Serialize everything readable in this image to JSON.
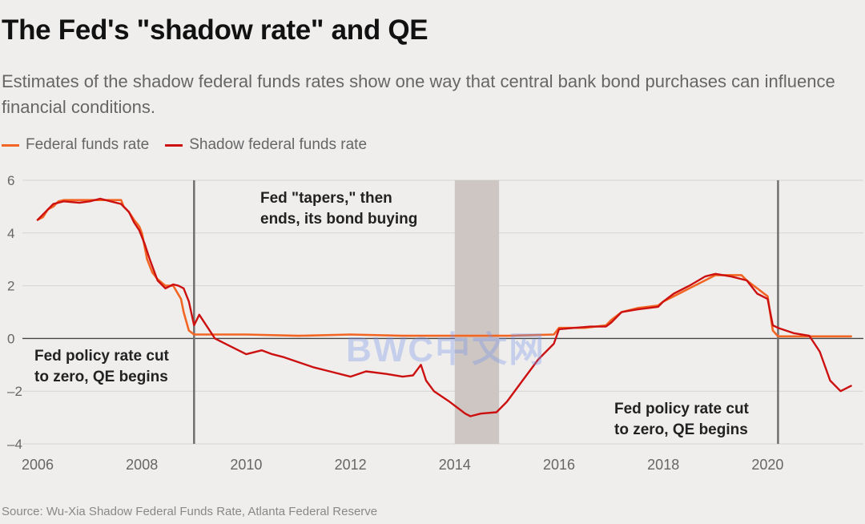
{
  "title": "The Fed's \"shadow rate\" and QE",
  "subtitle": "Estimates of the shadow federal funds rates show one way that central bank bond purchases can influence financial conditions.",
  "source": "Source: Wu-Xia Shadow Federal Funds Rate, Atlanta Federal Reserve",
  "watermark": "BWC中文网",
  "colors": {
    "federal_funds_rate": "#f26522",
    "shadow_rate": "#cc1010",
    "shaded_band": "#cdc6c2",
    "event_line": "#707070",
    "grid": "#d4d4d4",
    "background": "#efeeed"
  },
  "chart_data": {
    "type": "line",
    "title": "The Fed's \"shadow rate\" and QE",
    "xlabel": "",
    "ylabel": "",
    "xlim": [
      2006,
      2021.7
    ],
    "ylim": [
      -4,
      6
    ],
    "x_ticks": [
      "2006",
      "2008",
      "2010",
      "2012",
      "2014",
      "2016",
      "2018",
      "2020"
    ],
    "y_ticks": [
      "6",
      "4",
      "2",
      "0",
      "-2",
      "-4"
    ],
    "grid": true,
    "legend_position": "top-left",
    "series": [
      {
        "name": "Federal funds rate",
        "color": "#f26522",
        "x": [
          2006.0,
          2006.1,
          2006.2,
          2006.3,
          2006.4,
          2006.5,
          2006.6,
          2006.8,
          2007.0,
          2007.2,
          2007.4,
          2007.6,
          2007.65,
          2007.75,
          2007.85,
          2007.95,
          2008.0,
          2008.1,
          2008.2,
          2008.3,
          2008.45,
          2008.6,
          2008.75,
          2008.8,
          2008.9,
          2009.0,
          2009.5,
          2010.0,
          2011.0,
          2012.0,
          2013.0,
          2014.0,
          2015.0,
          2015.9,
          2016.0,
          2016.5,
          2016.9,
          2017.0,
          2017.2,
          2017.5,
          2017.9,
          2018.0,
          2018.2,
          2018.5,
          2018.8,
          2019.0,
          2019.5,
          2019.6,
          2019.8,
          2020.0,
          2020.1,
          2020.2,
          2021.0,
          2021.6
        ],
        "y": [
          4.5,
          4.6,
          4.9,
          5.0,
          5.2,
          5.25,
          5.25,
          5.25,
          5.25,
          5.25,
          5.25,
          5.25,
          5.0,
          4.8,
          4.5,
          4.25,
          4.0,
          3.0,
          2.5,
          2.25,
          2.0,
          2.0,
          1.5,
          1.0,
          0.3,
          0.15,
          0.15,
          0.15,
          0.1,
          0.15,
          0.1,
          0.1,
          0.1,
          0.15,
          0.4,
          0.4,
          0.5,
          0.7,
          1.0,
          1.15,
          1.25,
          1.4,
          1.6,
          1.9,
          2.2,
          2.4,
          2.4,
          2.2,
          1.9,
          1.6,
          0.3,
          0.08,
          0.08,
          0.08
        ]
      },
      {
        "name": "Shadow federal funds rate",
        "color": "#cc1010",
        "x": [
          2006.0,
          2006.1,
          2006.2,
          2006.3,
          2006.4,
          2006.5,
          2006.8,
          2007.0,
          2007.2,
          2007.4,
          2007.6,
          2007.75,
          2007.85,
          2007.95,
          2008.05,
          2008.15,
          2008.3,
          2008.45,
          2008.6,
          2008.7,
          2008.8,
          2008.9,
          2009.0,
          2009.1,
          2009.2,
          2009.4,
          2009.7,
          2010.0,
          2010.3,
          2010.5,
          2010.7,
          2011.0,
          2011.3,
          2011.6,
          2012.0,
          2012.3,
          2012.7,
          2013.0,
          2013.2,
          2013.35,
          2013.45,
          2013.6,
          2013.9,
          2014.2,
          2014.3,
          2014.5,
          2014.8,
          2015.0,
          2015.3,
          2015.6,
          2015.9,
          2016.0,
          2016.3,
          2016.6,
          2016.9,
          2017.0,
          2017.2,
          2017.5,
          2017.9,
          2018.0,
          2018.2,
          2018.5,
          2018.8,
          2019.0,
          2019.3,
          2019.6,
          2019.8,
          2020.0,
          2020.1,
          2020.2,
          2020.5,
          2020.8,
          2021.0,
          2021.2,
          2021.4,
          2021.6
        ],
        "y": [
          4.5,
          4.7,
          4.9,
          5.1,
          5.15,
          5.2,
          5.15,
          5.2,
          5.3,
          5.2,
          5.1,
          4.8,
          4.4,
          4.1,
          3.6,
          3.0,
          2.2,
          1.9,
          2.05,
          2.0,
          1.9,
          1.4,
          0.5,
          0.9,
          0.6,
          0.0,
          -0.3,
          -0.6,
          -0.45,
          -0.6,
          -0.7,
          -0.9,
          -1.1,
          -1.25,
          -1.45,
          -1.25,
          -1.35,
          -1.45,
          -1.4,
          -1.0,
          -1.6,
          -2.0,
          -2.4,
          -2.85,
          -2.95,
          -2.85,
          -2.8,
          -2.4,
          -1.6,
          -0.8,
          -0.2,
          0.35,
          0.4,
          0.45,
          0.45,
          0.6,
          1.0,
          1.1,
          1.2,
          1.4,
          1.7,
          2.0,
          2.35,
          2.45,
          2.35,
          2.2,
          1.7,
          1.5,
          0.5,
          0.4,
          0.2,
          0.1,
          -0.5,
          -1.6,
          -2.0,
          -1.8
        ]
      }
    ],
    "shaded_band": {
      "x_start": 2014.0,
      "x_end": 2014.85
    },
    "event_lines": [
      2009.0,
      2020.2
    ],
    "annotations": [
      {
        "lines": [
          "Fed \"tapers,\" then",
          "ends, its bond buying"
        ]
      },
      {
        "lines": [
          "Fed policy rate cut",
          "to zero, QE begins"
        ]
      },
      {
        "lines": [
          "Fed policy rate cut",
          "to zero, QE begins"
        ]
      }
    ]
  }
}
